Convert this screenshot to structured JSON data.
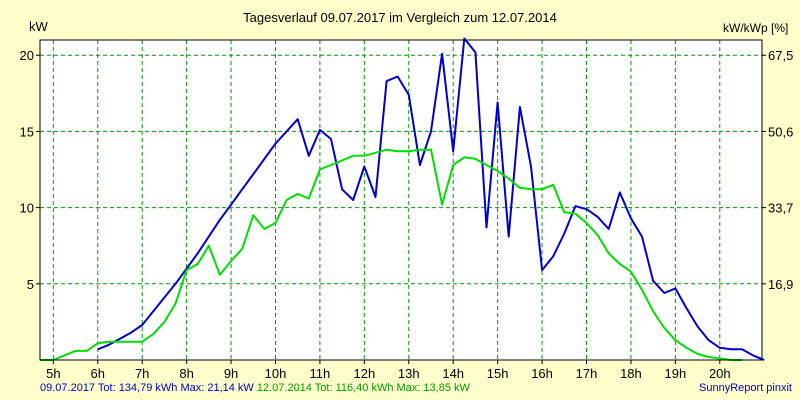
{
  "chart_data": {
    "type": "line",
    "title": "Tagesverlauf 09.07.2017 im Vergleich zum 12.07.2014",
    "ylabel_left": "kW",
    "ylabel_right": "kW/kWp [%]",
    "xlim": [
      4.7,
      20.95
    ],
    "ylim": [
      0,
      21
    ],
    "grid": true,
    "x_ticks": [
      5,
      6,
      7,
      8,
      9,
      10,
      11,
      12,
      13,
      14,
      15,
      16,
      17,
      18,
      19,
      20
    ],
    "x_tick_labels": [
      "5h",
      "6h",
      "7h",
      "8h",
      "9h",
      "10h",
      "11h",
      "12h",
      "13h",
      "14h",
      "15h",
      "16h",
      "17h",
      "18h",
      "19h",
      "20h"
    ],
    "y_ticks_left": [
      5,
      10,
      15,
      20
    ],
    "y_ticks_left_labels": [
      "5",
      "10",
      "15",
      "20"
    ],
    "y_ticks_right": [
      5,
      10,
      15,
      20
    ],
    "y_ticks_right_labels": [
      "16,9",
      "33,7",
      "50,6",
      "67,5"
    ],
    "series": [
      {
        "name": "09.07.2017",
        "color": "#0000cc",
        "points": [
          [
            6.0,
            0.7
          ],
          [
            6.25,
            1.0
          ],
          [
            6.5,
            1.4
          ],
          [
            6.75,
            1.8
          ],
          [
            7.0,
            2.3
          ],
          [
            7.25,
            3.2
          ],
          [
            7.5,
            4.1
          ],
          [
            7.75,
            5.0
          ],
          [
            8.0,
            6.0
          ],
          [
            8.25,
            7.0
          ],
          [
            8.5,
            8.1
          ],
          [
            8.75,
            9.2
          ],
          [
            9.0,
            10.2
          ],
          [
            9.25,
            11.2
          ],
          [
            9.5,
            12.2
          ],
          [
            9.75,
            13.2
          ],
          [
            10.0,
            14.2
          ],
          [
            10.25,
            15.0
          ],
          [
            10.5,
            15.8
          ],
          [
            10.75,
            13.4
          ],
          [
            11.0,
            15.1
          ],
          [
            11.25,
            14.5
          ],
          [
            11.5,
            11.2
          ],
          [
            11.75,
            10.5
          ],
          [
            12.0,
            12.7
          ],
          [
            12.25,
            10.7
          ],
          [
            12.5,
            18.3
          ],
          [
            12.75,
            18.6
          ],
          [
            13.0,
            17.4
          ],
          [
            13.25,
            12.8
          ],
          [
            13.5,
            15.0
          ],
          [
            13.75,
            20.1
          ],
          [
            14.0,
            13.7
          ],
          [
            14.25,
            21.1
          ],
          [
            14.5,
            20.2
          ],
          [
            14.75,
            8.7
          ],
          [
            15.0,
            16.9
          ],
          [
            15.25,
            8.1
          ],
          [
            15.5,
            16.6
          ],
          [
            15.75,
            12.7
          ],
          [
            16.0,
            5.9
          ],
          [
            16.25,
            6.8
          ],
          [
            16.5,
            8.3
          ],
          [
            16.75,
            10.1
          ],
          [
            17.0,
            9.9
          ],
          [
            17.25,
            9.4
          ],
          [
            17.5,
            8.6
          ],
          [
            17.75,
            11.0
          ],
          [
            18.0,
            9.3
          ],
          [
            18.25,
            8.1
          ],
          [
            18.5,
            5.2
          ],
          [
            18.75,
            4.4
          ],
          [
            19.0,
            4.7
          ],
          [
            19.25,
            3.4
          ],
          [
            19.5,
            2.2
          ],
          [
            19.75,
            1.3
          ],
          [
            20.0,
            0.8
          ],
          [
            20.25,
            0.7
          ],
          [
            20.5,
            0.7
          ],
          [
            20.75,
            0.3
          ],
          [
            21.0,
            0.0
          ]
        ]
      },
      {
        "name": "12.07.2014",
        "color": "#00dd00",
        "points": [
          [
            4.7,
            0.0
          ],
          [
            5.0,
            0.0
          ],
          [
            5.25,
            0.3
          ],
          [
            5.5,
            0.6
          ],
          [
            5.75,
            0.6
          ],
          [
            6.0,
            1.1
          ],
          [
            6.25,
            1.2
          ],
          [
            6.5,
            1.2
          ],
          [
            6.75,
            1.2
          ],
          [
            7.0,
            1.2
          ],
          [
            7.25,
            1.7
          ],
          [
            7.5,
            2.5
          ],
          [
            7.75,
            3.7
          ],
          [
            8.0,
            5.9
          ],
          [
            8.25,
            6.3
          ],
          [
            8.5,
            7.5
          ],
          [
            8.75,
            5.6
          ],
          [
            9.0,
            6.5
          ],
          [
            9.25,
            7.3
          ],
          [
            9.5,
            9.5
          ],
          [
            9.75,
            8.6
          ],
          [
            10.0,
            9.0
          ],
          [
            10.25,
            10.5
          ],
          [
            10.5,
            10.9
          ],
          [
            10.75,
            10.6
          ],
          [
            11.0,
            12.5
          ],
          [
            11.25,
            12.8
          ],
          [
            11.5,
            13.1
          ],
          [
            11.75,
            13.4
          ],
          [
            12.0,
            13.4
          ],
          [
            12.25,
            13.6
          ],
          [
            12.5,
            13.8
          ],
          [
            12.75,
            13.7
          ],
          [
            13.0,
            13.7
          ],
          [
            13.25,
            13.8
          ],
          [
            13.5,
            13.8
          ],
          [
            13.75,
            10.2
          ],
          [
            14.0,
            12.8
          ],
          [
            14.25,
            13.3
          ],
          [
            14.5,
            13.2
          ],
          [
            14.75,
            12.8
          ],
          [
            15.0,
            12.4
          ],
          [
            15.25,
            11.9
          ],
          [
            15.5,
            11.3
          ],
          [
            15.75,
            11.2
          ],
          [
            16.0,
            11.2
          ],
          [
            16.25,
            11.5
          ],
          [
            16.5,
            9.7
          ],
          [
            16.75,
            9.6
          ],
          [
            17.0,
            9.0
          ],
          [
            17.25,
            8.2
          ],
          [
            17.5,
            7.0
          ],
          [
            17.75,
            6.3
          ],
          [
            18.0,
            5.8
          ],
          [
            18.25,
            4.6
          ],
          [
            18.5,
            3.2
          ],
          [
            18.75,
            2.1
          ],
          [
            19.0,
            1.3
          ],
          [
            19.25,
            0.8
          ],
          [
            19.5,
            0.4
          ],
          [
            19.75,
            0.2
          ],
          [
            20.0,
            0.1
          ],
          [
            20.25,
            0.0
          ],
          [
            20.5,
            0.0
          ]
        ]
      }
    ]
  },
  "footer": {
    "series1_summary": "09.07.2017 Tot: 134,79 kWh Max: 21,14 kW",
    "series2_summary": "12.07.2014 Tot: 116,40 kWh Max: 13,85 kW",
    "credit": "SunnyReport pinxit"
  },
  "colors": {
    "background": "#ffffcc",
    "plot_background": "#ffffff",
    "grid": "#009900"
  }
}
